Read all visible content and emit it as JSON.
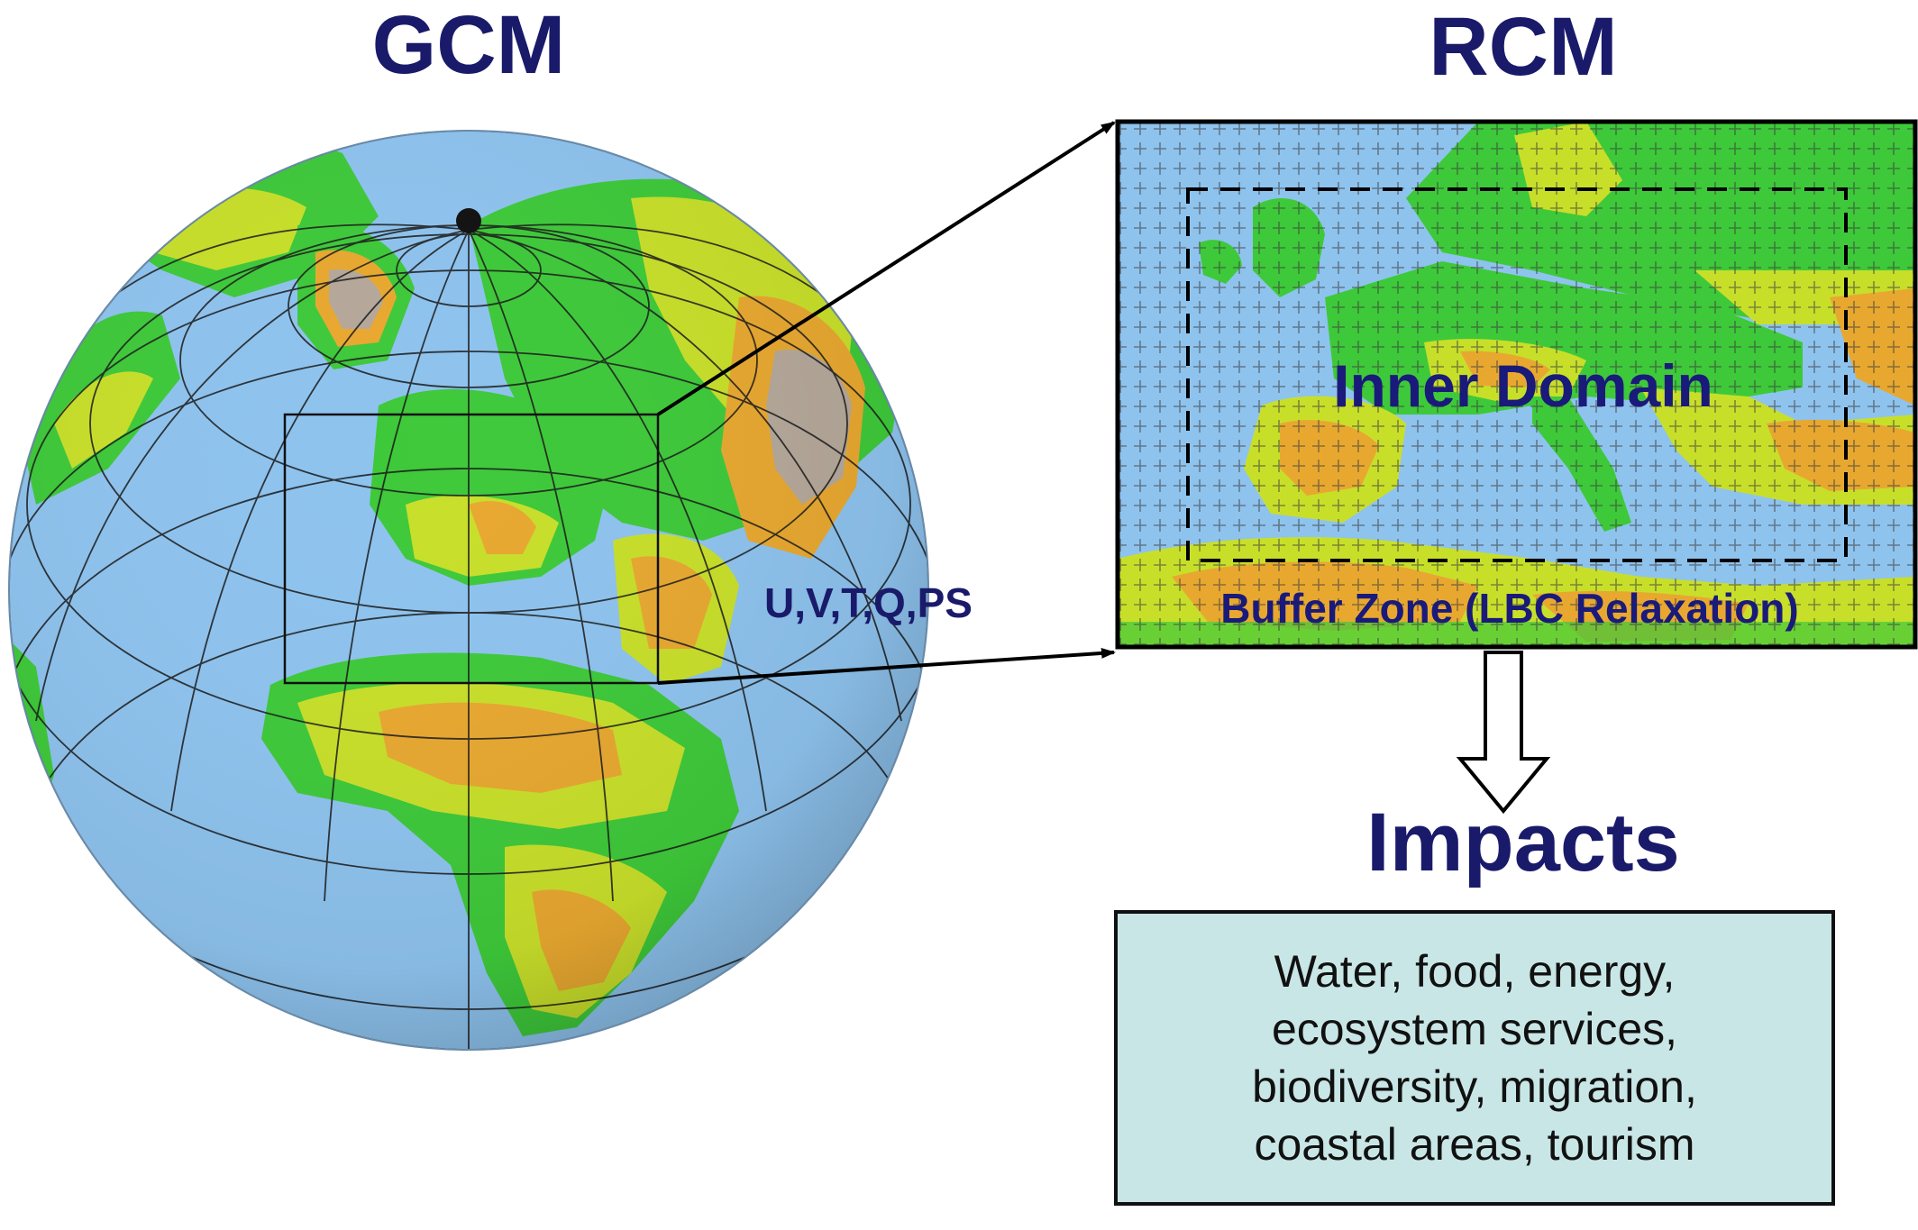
{
  "gcm": {
    "title": "GCM"
  },
  "rcm": {
    "title": "RCM",
    "inner_domain_label": "Inner Domain",
    "buffer_zone_label": "Buffer Zone (LBC Relaxation)"
  },
  "forcing": {
    "variables_label": "U,V,T,Q,PS"
  },
  "impacts": {
    "title": "Impacts",
    "lines": [
      "Water, food, energy,",
      "ecosystem services,",
      "biodiversity, migration,",
      "coastal areas, tourism"
    ],
    "box_color": "#c9e6e6"
  },
  "colors": {
    "ocean": "#8ec3ee",
    "land_low": "#3ec93a",
    "land_mid": "#c8df2a",
    "land_high": "#e8a830",
    "mountain": "#b5a89a",
    "text_title": "#1a1a6b"
  }
}
